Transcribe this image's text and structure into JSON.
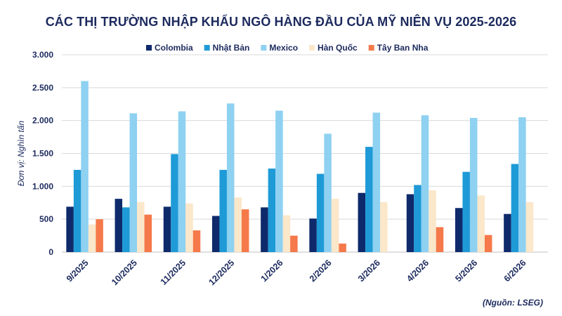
{
  "chart_data": {
    "type": "bar",
    "title": "CÁC THỊ TRƯỜNG NHẬP KHẨU NGÔ HÀNG ĐẦU CỦA MỸ NIÊN VỤ 2025-2026",
    "ylabel": "Đơn vị: Nghìn tấn",
    "xlabel": "",
    "source": "(Nguồn: LSEG)",
    "ylim": [
      0,
      3000
    ],
    "yticks": [
      0,
      500,
      1000,
      1500,
      2000,
      2500,
      3000
    ],
    "ytick_labels": [
      "0",
      "500",
      "1.000",
      "1.500",
      "2.000",
      "2.500",
      "3.000"
    ],
    "grid": true,
    "legend_position": "top-center",
    "categories": [
      "9/2025",
      "10/2025",
      "11/2025",
      "12/2025",
      "1/2026",
      "2/2026",
      "3/2026",
      "4/2026",
      "5/2026",
      "6/2026"
    ],
    "series": [
      {
        "name": "Colombia",
        "color": "#0e2a6b",
        "values": [
          690,
          810,
          690,
          550,
          680,
          510,
          900,
          880,
          670,
          580
        ]
      },
      {
        "name": "Nhật Bản",
        "color": "#1e9ad6",
        "values": [
          1250,
          680,
          1490,
          1250,
          1270,
          1190,
          1600,
          1020,
          1220,
          1340
        ]
      },
      {
        "name": "Mexico",
        "color": "#8ed1f1",
        "values": [
          2600,
          2110,
          2140,
          2260,
          2150,
          1800,
          2120,
          2080,
          2040,
          2050
        ]
      },
      {
        "name": "Hàn Quốc",
        "color": "#fbe7c9",
        "values": [
          420,
          760,
          740,
          830,
          560,
          810,
          760,
          940,
          860,
          760
        ]
      },
      {
        "name": "Tây Ban Nha",
        "color": "#f5794a",
        "values": [
          500,
          570,
          330,
          650,
          250,
          130,
          0,
          380,
          260,
          0
        ]
      }
    ]
  }
}
